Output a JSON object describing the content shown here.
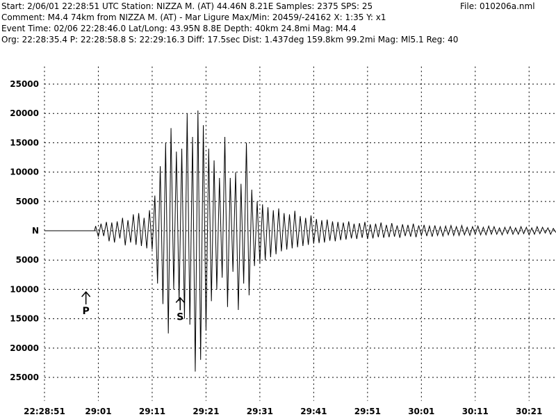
{
  "chart_data": {
    "type": "line",
    "file_label": "File: 010206a.nml",
    "header_lines": [
      "Start: 2/06/01 22:28:51 UTC Station: NIZZA M. (AT) 44.46N 8.21E Samples: 2375  SPS: 25",
      "Comment: M4.4 74km from NIZZA M. (AT) - Mar Ligure  Max/Min: 20459/-24162 X: 1:35 Y: x1",
      "Event Time: 02/06 22:28:46.0 Lat/Long: 43.95N 8.8E Depth: 40km 24.8mi Mag: M4.4",
      "Org: 22:28:35.4 P: 22:28:58.8 S: 22:29:16.3 Diff: 17.5sec Dist: 1.437deg 159.8km 99.2mi  Mag: Ml5.1 Reg: 40"
    ],
    "color": "#000000",
    "grid": true,
    "xlim": [
      0,
      95
    ],
    "ylim": [
      -29000,
      28000
    ],
    "xticks": [
      {
        "value": 0,
        "label": "22:28:51"
      },
      {
        "value": 10,
        "label": "29:01"
      },
      {
        "value": 20,
        "label": "29:11"
      },
      {
        "value": 30,
        "label": "29:21"
      },
      {
        "value": 40,
        "label": "29:31"
      },
      {
        "value": 50,
        "label": "29:41"
      },
      {
        "value": 60,
        "label": "29:51"
      },
      {
        "value": 70,
        "label": "30:01"
      },
      {
        "value": 80,
        "label": "30:11"
      },
      {
        "value": 90,
        "label": "30:21"
      }
    ],
    "yticks": [
      25000,
      20000,
      15000,
      10000,
      5000,
      {
        "value": 0,
        "label": "N"
      },
      {
        "value": -5000,
        "label": "5000"
      },
      {
        "value": -10000,
        "label": "10000"
      },
      {
        "value": -15000,
        "label": "15000"
      },
      {
        "value": -20000,
        "label": "20000"
      },
      {
        "value": -25000,
        "label": "25000"
      }
    ],
    "annotations": [
      {
        "text": "P",
        "x": 7.7,
        "y": -13500
      },
      {
        "text": "S",
        "x": 25.2,
        "y": -14500
      }
    ],
    "x": [
      0,
      9.3,
      9.5,
      10,
      10.5,
      11,
      11.5,
      12,
      12.5,
      13,
      13.5,
      14,
      14.5,
      15,
      15.5,
      16,
      16.5,
      17,
      17.5,
      18,
      18.5,
      19,
      19.5,
      20,
      20.5,
      21,
      21.5,
      22,
      22.5,
      23,
      23.5,
      24,
      24.5,
      25,
      25.5,
      26,
      26.5,
      27,
      27.5,
      28,
      28.5,
      29,
      29.5,
      30,
      30.5,
      31,
      31.5,
      32,
      32.5,
      33,
      33.5,
      34,
      34.5,
      35,
      35.5,
      36,
      36.5,
      37,
      37.5,
      38,
      38.5,
      39,
      39.5,
      40,
      40.5,
      41,
      41.5,
      42,
      42.5,
      43,
      43.5,
      44,
      44.5,
      45,
      45.5,
      46,
      46.5,
      47,
      47.5,
      48,
      48.5,
      49,
      49.5,
      50,
      50.5,
      51,
      51.5,
      52,
      52.5,
      53,
      53.5,
      54,
      54.5,
      55,
      55.5,
      56,
      56.5,
      57,
      57.5,
      58,
      58.5,
      59,
      59.5,
      60,
      60.5,
      61,
      61.5,
      62,
      62.5,
      63,
      63.5,
      64,
      64.5,
      65,
      65.5,
      66,
      66.5,
      67,
      67.5,
      68,
      68.5,
      69,
      69.5,
      70,
      70.5,
      71,
      71.5,
      72,
      72.5,
      73,
      73.5,
      74,
      74.5,
      75,
      75.5,
      76,
      76.5,
      77,
      77.5,
      78,
      78.5,
      79,
      79.5,
      80,
      80.5,
      81,
      81.5,
      82,
      82.5,
      83,
      83.5,
      84,
      84.5,
      85,
      85.5,
      86,
      86.5,
      87,
      87.5,
      88,
      88.5,
      89,
      89.5,
      90,
      90.5,
      91,
      91.5,
      92,
      92.5,
      93,
      93.5,
      94,
      94.5,
      95
    ],
    "values": [
      0,
      0,
      800,
      -1000,
      1200,
      -900,
      1500,
      -1800,
      1400,
      -2000,
      1600,
      -1300,
      2200,
      -2500,
      1800,
      -2000,
      2800,
      -2400,
      3000,
      -2600,
      2200,
      -3000,
      3500,
      -3200,
      6000,
      -9000,
      11000,
      -12500,
      15000,
      -17500,
      17500,
      -10000,
      13500,
      -12000,
      14000,
      -15000,
      20000,
      -16000,
      16000,
      -24000,
      20500,
      -22000,
      18000,
      -17000,
      14000,
      -12000,
      12000,
      -10000,
      9000,
      -8000,
      16000,
      -13000,
      9000,
      -7000,
      10000,
      -13500,
      8000,
      -9000,
      15000,
      -11000,
      7000,
      -6000,
      5000,
      -5500,
      4500,
      -5000,
      4000,
      -4500,
      3500,
      -4000,
      3800,
      -3500,
      3000,
      -3200,
      2800,
      -3000,
      3400,
      -2800,
      2500,
      -2600,
      2200,
      -2400,
      2600,
      -2200,
      2000,
      -2100,
      1800,
      -2000,
      1900,
      -1700,
      1600,
      -1800,
      1500,
      -1600,
      1400,
      -1500,
      1600,
      -1300,
      1200,
      -1400,
      1300,
      -1200,
      1500,
      -1400,
      1100,
      -1300,
      1200,
      -1100,
      1400,
      -1200,
      1000,
      -1100,
      1300,
      -1000,
      900,
      -1200,
      1100,
      -900,
      1000,
      -1000,
      1200,
      -1100,
      900,
      -800,
      1000,
      -900,
      800,
      -1000,
      900,
      -800,
      700,
      -900,
      800,
      -700,
      900,
      -800,
      700,
      -800,
      900,
      -700,
      600,
      -800,
      700,
      -600,
      800,
      -700,
      600,
      -700,
      800,
      -600,
      700,
      -600,
      500,
      -700,
      600,
      -500,
      700,
      -600,
      500,
      -600,
      700,
      -500,
      600,
      -700,
      500,
      -600,
      700,
      -500,
      600,
      -400,
      500,
      -600,
      400,
      -300
    ]
  }
}
